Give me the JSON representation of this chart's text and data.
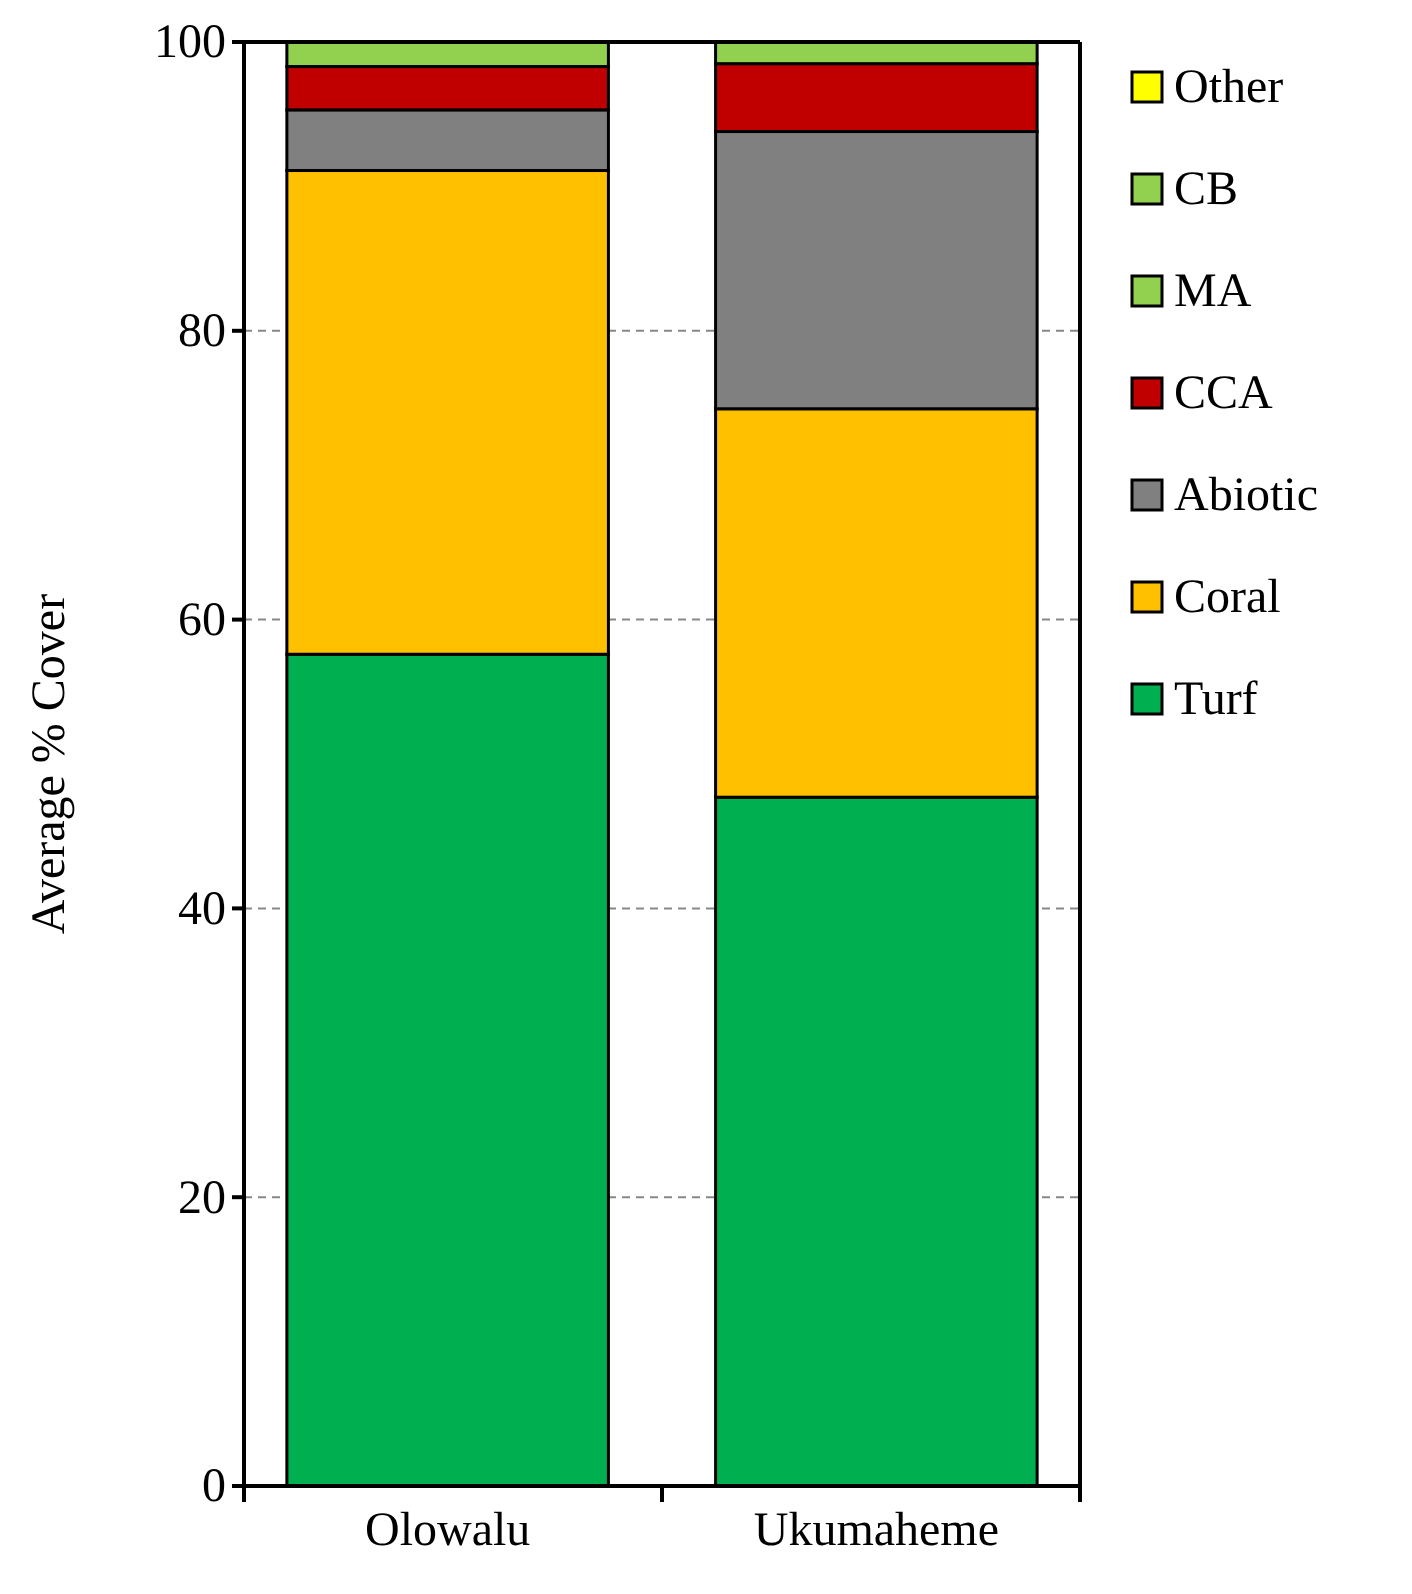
{
  "chart_data": {
    "type": "bar",
    "stacked": true,
    "ylabel": "Average % Cover",
    "categories": [
      "Olowalu",
      "Ukumaheme"
    ],
    "series": [
      {
        "name": "Turf",
        "color": "#00b050",
        "values": [
          57.6,
          47.7
        ]
      },
      {
        "name": "Coral",
        "color": "#ffc000",
        "values": [
          33.5,
          26.9
        ]
      },
      {
        "name": "Abiotic",
        "color": "#808080",
        "values": [
          4.2,
          19.2
        ]
      },
      {
        "name": "CCA",
        "color": "#c00000",
        "values": [
          3.0,
          4.7
        ]
      },
      {
        "name": "MA",
        "color": "#92d050",
        "values": [
          1.7,
          1.5
        ]
      },
      {
        "name": "CB",
        "color": "#92d050",
        "values": [
          0,
          0
        ]
      },
      {
        "name": "Other",
        "color": "#ffff00",
        "values": [
          0,
          0
        ]
      }
    ],
    "ylim": [
      0,
      100
    ],
    "yticks": [
      0,
      20,
      40,
      60,
      80,
      100
    ],
    "grid": "y",
    "legend": "right"
  }
}
